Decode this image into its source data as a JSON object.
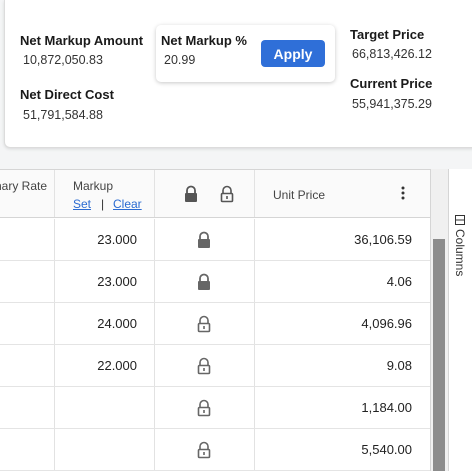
{
  "summary": {
    "net_markup_amount_label": "Net Markup Amount",
    "net_markup_amount_value": "10,872,050.83",
    "net_direct_cost_label": "Net Direct Cost",
    "net_direct_cost_value": "51,791,584.88",
    "net_markup_pct_label": "Net Markup %",
    "net_markup_pct_value": "20.99",
    "apply_label": "Apply",
    "target_price_label": "Target Price",
    "target_price_value": "66,813,426.12",
    "current_price_label": "Current Price",
    "current_price_value": "55,941,375.29"
  },
  "grid": {
    "columns": {
      "primary_rate": "nary Rate",
      "markup": "Markup",
      "markup_set": "Set",
      "markup_sep": "|",
      "markup_clear": "Clear",
      "unit_price": "Unit Price"
    },
    "rows": [
      {
        "markup": "23.000",
        "locked": true,
        "unit_price": "36,106.59"
      },
      {
        "markup": "23.000",
        "locked": true,
        "unit_price": "4.06"
      },
      {
        "markup": "24.000",
        "locked": false,
        "unit_price": "4,096.96"
      },
      {
        "markup": "22.000",
        "locked": false,
        "unit_price": "9.08"
      },
      {
        "markup": "",
        "locked": false,
        "unit_price": "1,184.00"
      },
      {
        "markup": "",
        "locked": false,
        "unit_price": "5,540.00"
      }
    ]
  },
  "side_panel": {
    "columns_label": "Columns",
    "icon": "columns-icon"
  },
  "colors": {
    "accent": "#2f6fd8",
    "link": "#2b6bd1",
    "lock_icon": "#666666"
  }
}
